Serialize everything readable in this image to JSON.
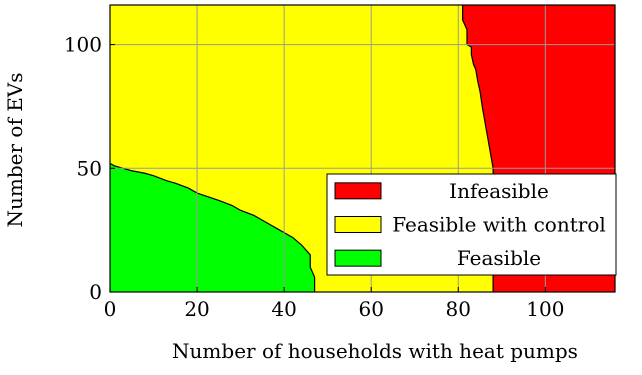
{
  "chart_data": {
    "type": "area",
    "xlabel": "Number of households with heat pumps",
    "ylabel": "Number of EVs",
    "xlim": [
      0,
      116
    ],
    "ylim": [
      0,
      116
    ],
    "x_ticks": [
      0,
      20,
      40,
      60,
      80,
      100
    ],
    "y_ticks": [
      0,
      50,
      100
    ],
    "grid": true,
    "legend_position": "lower-right",
    "regions": [
      {
        "name": "Infeasible",
        "color": "#ff0000",
        "description_role": "right of feasible-with-control boundary",
        "boundary": {
          "x": [
            81,
            81,
            82,
            82,
            83,
            83,
            83.5,
            84,
            84.5,
            85,
            85.5,
            86,
            86.5,
            87,
            87.5,
            88,
            88,
            88
          ],
          "y": [
            116,
            110,
            106,
            100,
            99,
            96,
            92,
            90,
            85,
            81,
            75,
            70,
            65,
            60,
            55,
            50,
            20,
            0
          ]
        }
      },
      {
        "name": "Feasible with control",
        "color": "#ffff00"
      },
      {
        "name": "Feasible",
        "color": "#00ff00",
        "description_role": "below feasible boundary",
        "boundary": {
          "x": [
            0,
            1,
            3,
            5,
            8,
            10,
            13,
            15,
            18,
            20,
            25,
            28,
            30,
            33,
            35,
            38,
            40,
            42,
            44,
            45,
            46,
            46,
            47,
            47
          ],
          "y": [
            52,
            51,
            50,
            49,
            48,
            47,
            45,
            44,
            42,
            40,
            37,
            35,
            33,
            31,
            29,
            26,
            24,
            22,
            19,
            17,
            15,
            10,
            6,
            0
          ]
        }
      }
    ],
    "legend": [
      {
        "label": "Infeasible",
        "color": "#ff0000"
      },
      {
        "label": "Feasible with control",
        "color": "#ffff00"
      },
      {
        "label": "Feasible",
        "color": "#00ff00"
      }
    ]
  }
}
